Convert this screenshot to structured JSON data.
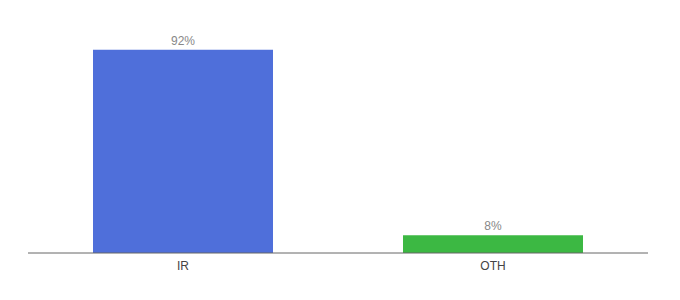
{
  "chart_data": {
    "type": "bar",
    "categories": [
      "IR",
      "OTH"
    ],
    "values": [
      92,
      8
    ],
    "value_labels": [
      "92%",
      "8%"
    ],
    "colors": [
      "#4f6fda",
      "#3cb843"
    ],
    "ylim": [
      0,
      100
    ],
    "data_labels": true,
    "tick_labels": "x",
    "grid": false
  }
}
